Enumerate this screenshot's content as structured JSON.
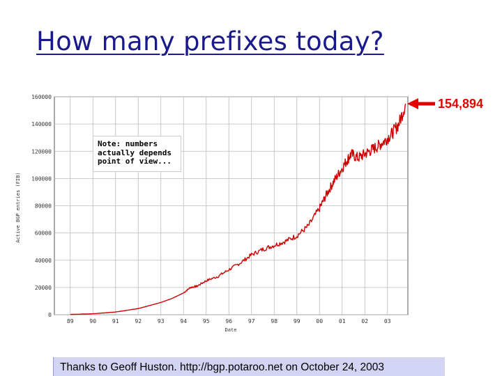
{
  "slide": {
    "title": "How many prefixes today?",
    "note": "Note: numbers actually depends point of view...",
    "callout": "154,894",
    "credit": "Thanks to Geoff Huston. http://bgp.potaroo.net on October 24, 2003"
  },
  "colors": {
    "line": "#cc0000",
    "callout": "#e60000",
    "title": "#1a1a8c",
    "credit_bg": "#d3d3f3"
  },
  "chart_data": {
    "type": "line",
    "title": "",
    "xlabel": "Date",
    "ylabel": "Active BGP entries (FIB)",
    "xlim": [
      1988.3,
      2003.9
    ],
    "ylim": [
      0,
      160000
    ],
    "x_ticks": [
      "89",
      "90",
      "91",
      "92",
      "93",
      "94",
      "95",
      "96",
      "97",
      "98",
      "99",
      "00",
      "01",
      "02",
      "03"
    ],
    "x_tick_values": [
      1989,
      1990,
      1991,
      1992,
      1993,
      1994,
      1995,
      1996,
      1997,
      1998,
      1999,
      2000,
      2001,
      2002,
      2003
    ],
    "y_ticks": [
      "0",
      "20000",
      "40000",
      "60000",
      "80000",
      "100000",
      "120000",
      "140000",
      "160000"
    ],
    "y_tick_values": [
      0,
      20000,
      40000,
      60000,
      80000,
      100000,
      120000,
      140000,
      160000
    ],
    "grid": true,
    "series": [
      {
        "values": [
          [
            1989.0,
            200
          ],
          [
            1990.0,
            700
          ],
          [
            1991.0,
            2000
          ],
          [
            1992.0,
            4500
          ],
          [
            1993.0,
            9000
          ],
          [
            1993.5,
            12000
          ],
          [
            1994.0,
            16000
          ],
          [
            1994.3,
            20000
          ],
          [
            1994.6,
            21000
          ],
          [
            1995.0,
            25000
          ],
          [
            1995.5,
            28000
          ],
          [
            1996.0,
            33000
          ],
          [
            1996.5,
            38000
          ],
          [
            1997.0,
            44000
          ],
          [
            1997.5,
            48000
          ],
          [
            1998.0,
            51000
          ],
          [
            1998.5,
            54000
          ],
          [
            1999.0,
            58000
          ],
          [
            1999.5,
            65000
          ],
          [
            2000.0,
            78000
          ],
          [
            2000.3,
            88000
          ],
          [
            2000.6,
            97000
          ],
          [
            2000.9,
            105000
          ],
          [
            2001.2,
            113000
          ],
          [
            2001.4,
            118000
          ],
          [
            2001.7,
            115000
          ],
          [
            2002.0,
            118000
          ],
          [
            2002.3,
            121000
          ],
          [
            2002.6,
            124000
          ],
          [
            2002.9,
            128000
          ],
          [
            2003.2,
            133000
          ],
          [
            2003.5,
            140000
          ],
          [
            2003.8,
            154894
          ]
        ]
      }
    ]
  }
}
